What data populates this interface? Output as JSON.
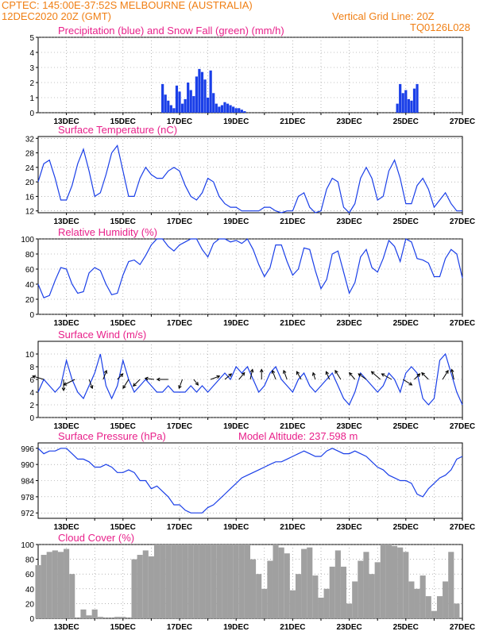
{
  "header": {
    "station": "CPTEC:   145:00E-37:52S   MELBOURNE (AUSTRALIA)",
    "run": "12DEC2020 20Z (GMT)",
    "grid": "Vertical Grid Line: 20Z",
    "code": "TQ0126L028"
  },
  "colors": {
    "header": "#f07f14",
    "title": "#e8208a",
    "line": "#1a3fe8",
    "snow": "#22aa22",
    "cloud": "#a0a0a0",
    "grid": "#888888"
  },
  "x_labels": [
    "13DEC",
    "15DEC",
    "17DEC",
    "19DEC",
    "21DEC",
    "23DEC",
    "25DEC",
    "27DEC"
  ],
  "chart_data": [
    {
      "type": "bar",
      "title": "Precipitation (blue) and Snow Fall (green) (mm/h)",
      "ylim": [
        0,
        5
      ],
      "yticks": [
        0,
        1,
        2,
        3,
        4,
        5
      ],
      "x_start": 12.0,
      "x_end": 27.0,
      "series": [
        {
          "name": "Precipitation",
          "x": [
            16.4,
            16.5,
            16.6,
            16.7,
            16.8,
            16.9,
            17.0,
            17.1,
            17.2,
            17.3,
            17.4,
            17.5,
            17.6,
            17.7,
            17.8,
            17.9,
            18.0,
            18.1,
            18.2,
            18.3,
            18.4,
            18.5,
            18.6,
            18.7,
            18.8,
            18.9,
            19.0,
            19.1,
            19.2,
            19.3,
            24.7,
            24.8,
            24.9,
            25.0,
            25.1,
            25.2,
            25.3,
            25.4
          ],
          "values": [
            1.9,
            1.2,
            0.8,
            0.5,
            0.3,
            1.8,
            1.4,
            0.6,
            0.9,
            2.0,
            1.5,
            1.1,
            2.4,
            2.9,
            2.7,
            2.2,
            1.0,
            2.8,
            1.3,
            0.6,
            0.4,
            0.5,
            0.7,
            0.6,
            0.5,
            0.4,
            0.3,
            0.3,
            0.2,
            0.1,
            0.6,
            1.9,
            1.3,
            1.5,
            0.9,
            0.8,
            1.6,
            1.9
          ]
        },
        {
          "name": "Snow Fall",
          "x": [],
          "values": []
        }
      ]
    },
    {
      "type": "line",
      "title": "Surface Temperature (nC)",
      "ylim": [
        11.5,
        32.5
      ],
      "yticks": [
        12,
        16,
        20,
        24,
        28,
        32
      ],
      "x": [
        12.0,
        12.2,
        12.4,
        12.6,
        12.8,
        13.0,
        13.2,
        13.4,
        13.6,
        13.8,
        14.0,
        14.2,
        14.4,
        14.6,
        14.8,
        15.0,
        15.2,
        15.4,
        15.6,
        15.8,
        16.0,
        16.2,
        16.4,
        16.6,
        16.8,
        17.0,
        17.2,
        17.4,
        17.6,
        17.8,
        18.0,
        18.2,
        18.4,
        18.6,
        18.8,
        19.0,
        19.2,
        19.4,
        19.6,
        19.8,
        20.0,
        20.2,
        20.4,
        20.6,
        20.8,
        21.0,
        21.2,
        21.4,
        21.6,
        21.8,
        22.0,
        22.2,
        22.4,
        22.6,
        22.8,
        23.0,
        23.2,
        23.4,
        23.6,
        23.8,
        24.0,
        24.2,
        24.4,
        24.6,
        24.8,
        25.0,
        25.2,
        25.4,
        25.6,
        25.8,
        26.0,
        26.2,
        26.4,
        26.6,
        26.8,
        27.0
      ],
      "values": [
        20,
        25,
        26,
        21,
        15,
        15,
        19,
        25,
        29,
        23,
        16,
        17,
        22,
        28,
        30,
        23,
        16,
        16,
        21,
        24,
        22,
        21,
        21,
        23,
        24,
        23,
        19,
        16,
        15,
        17,
        21,
        20,
        16,
        14,
        13,
        13,
        12,
        12,
        12,
        12,
        13,
        13,
        12,
        11,
        12,
        12,
        16,
        17,
        13,
        11,
        12,
        18,
        21,
        20,
        13,
        11,
        14,
        21,
        24,
        21,
        15,
        16,
        23,
        26,
        21,
        14,
        14,
        19,
        21,
        18,
        13,
        15,
        17,
        14,
        12,
        12
      ]
    },
    {
      "type": "line",
      "title": "Relative Humidity (%)",
      "ylim": [
        0,
        100
      ],
      "yticks": [
        0,
        20,
        40,
        60,
        80,
        100
      ],
      "x": [
        12.0,
        12.2,
        12.4,
        12.6,
        12.8,
        13.0,
        13.2,
        13.4,
        13.6,
        13.8,
        14.0,
        14.2,
        14.4,
        14.6,
        14.8,
        15.0,
        15.2,
        15.4,
        15.6,
        15.8,
        16.0,
        16.2,
        16.4,
        16.6,
        16.8,
        17.0,
        17.2,
        17.4,
        17.6,
        17.8,
        18.0,
        18.2,
        18.4,
        18.6,
        18.8,
        19.0,
        19.2,
        19.4,
        19.6,
        19.8,
        20.0,
        20.2,
        20.4,
        20.6,
        20.8,
        21.0,
        21.2,
        21.4,
        21.6,
        21.8,
        22.0,
        22.2,
        22.4,
        22.6,
        22.8,
        23.0,
        23.2,
        23.4,
        23.6,
        23.8,
        24.0,
        24.2,
        24.4,
        24.6,
        24.8,
        25.0,
        25.2,
        25.4,
        25.6,
        25.8,
        26.0,
        26.2,
        26.4,
        26.6,
        26.8,
        27.0
      ],
      "values": [
        40,
        22,
        25,
        45,
        62,
        60,
        40,
        28,
        30,
        55,
        62,
        58,
        40,
        26,
        28,
        52,
        70,
        72,
        66,
        78,
        92,
        100,
        100,
        90,
        84,
        92,
        96,
        100,
        100,
        86,
        76,
        94,
        100,
        100,
        96,
        98,
        94,
        100,
        86,
        66,
        50,
        62,
        92,
        92,
        70,
        52,
        60,
        88,
        86,
        58,
        34,
        46,
        80,
        84,
        56,
        28,
        42,
        76,
        86,
        62,
        56,
        74,
        98,
        90,
        70,
        100,
        96,
        74,
        72,
        68,
        50,
        50,
        74,
        86,
        80,
        48
      ]
    },
    {
      "type": "line",
      "title": "Surface Wind (m/s)",
      "ylim": [
        0,
        12
      ],
      "yticks": [
        0,
        2,
        4,
        6,
        8,
        10
      ],
      "x": [
        12.0,
        12.2,
        12.4,
        12.6,
        12.8,
        13.0,
        13.2,
        13.4,
        13.6,
        13.8,
        14.0,
        14.2,
        14.4,
        14.6,
        14.8,
        15.0,
        15.2,
        15.4,
        15.6,
        15.8,
        16.0,
        16.2,
        16.4,
        16.6,
        16.8,
        17.0,
        17.2,
        17.4,
        17.6,
        17.8,
        18.0,
        18.2,
        18.4,
        18.6,
        18.8,
        19.0,
        19.2,
        19.4,
        19.6,
        19.8,
        20.0,
        20.2,
        20.4,
        20.6,
        20.8,
        21.0,
        21.2,
        21.4,
        21.6,
        21.8,
        22.0,
        22.2,
        22.4,
        22.6,
        22.8,
        23.0,
        23.2,
        23.4,
        23.6,
        23.8,
        24.0,
        24.2,
        24.4,
        24.6,
        24.8,
        25.0,
        25.2,
        25.4,
        25.6,
        25.8,
        26.0,
        26.2,
        26.4,
        26.6,
        26.8,
        27.0
      ],
      "values": [
        4,
        6,
        5,
        4,
        5,
        9,
        6,
        4,
        3,
        5,
        7,
        10,
        5,
        3,
        5,
        9,
        6,
        4,
        5,
        6,
        5,
        4,
        4,
        5,
        4,
        4,
        4,
        5,
        4,
        5,
        4,
        5,
        6,
        7,
        6,
        8,
        7,
        8,
        6,
        4,
        5,
        7,
        8,
        6,
        5,
        4,
        6,
        7,
        5,
        4,
        5,
        6,
        7,
        5,
        3,
        2,
        4,
        7,
        6,
        5,
        4,
        5,
        7,
        6,
        4,
        7,
        8,
        7,
        3,
        2,
        3,
        9,
        10,
        7,
        4,
        2
      ],
      "arrows": {
        "x": [
          12.2,
          12.9,
          13.3,
          13.8,
          14.3,
          14.8,
          15.2,
          15.6,
          16.1,
          16.6,
          17.1,
          17.5,
          18.1,
          18.6,
          19.1,
          19.5,
          19.9,
          20.4,
          20.8,
          21.3,
          21.8,
          22.3,
          22.7,
          23.2,
          23.6,
          24.1,
          24.5,
          24.9,
          25.3,
          25.8,
          26.3,
          26.7
        ],
        "u": [
          -1.0,
          0.0,
          -1.0,
          0.3,
          0.3,
          0.5,
          -0.5,
          -0.6,
          -0.8,
          -1.0,
          -0.3,
          0.4,
          0.8,
          0.6,
          0.5,
          0.2,
          0.0,
          -0.3,
          -0.3,
          -0.4,
          -0.2,
          -0.3,
          -0.5,
          -0.5,
          -0.7,
          -0.8,
          -0.9,
          0.8,
          0.5,
          -0.6,
          0.5,
          -0.2
        ],
        "v": [
          0.3,
          -1.0,
          -0.5,
          -0.8,
          0.8,
          0.5,
          -0.8,
          -0.6,
          0.1,
          0.0,
          -0.8,
          -0.5,
          0.3,
          0.5,
          0.6,
          0.9,
          0.9,
          0.8,
          0.8,
          0.7,
          0.6,
          0.7,
          0.8,
          0.6,
          0.5,
          0.7,
          0.5,
          -0.5,
          0.5,
          0.6,
          0.8,
          0.9
        ]
      }
    },
    {
      "type": "line",
      "title": "Surface Pressure (hPa)",
      "subtitle": "Model Altitude: 237.598 m",
      "ylim": [
        970,
        998
      ],
      "yticks": [
        972,
        978,
        984,
        990,
        996
      ],
      "x": [
        12.0,
        12.2,
        12.4,
        12.6,
        12.8,
        13.0,
        13.2,
        13.4,
        13.6,
        13.8,
        14.0,
        14.2,
        14.4,
        14.6,
        14.8,
        15.0,
        15.2,
        15.4,
        15.6,
        15.8,
        16.0,
        16.2,
        16.4,
        16.6,
        16.8,
        17.0,
        17.2,
        17.4,
        17.6,
        17.8,
        18.0,
        18.2,
        18.4,
        18.6,
        18.8,
        19.0,
        19.2,
        19.4,
        19.6,
        19.8,
        20.0,
        20.2,
        20.4,
        20.6,
        20.8,
        21.0,
        21.2,
        21.4,
        21.6,
        21.8,
        22.0,
        22.2,
        22.4,
        22.6,
        22.8,
        23.0,
        23.2,
        23.4,
        23.6,
        23.8,
        24.0,
        24.2,
        24.4,
        24.6,
        24.8,
        25.0,
        25.2,
        25.4,
        25.6,
        25.8,
        26.0,
        26.2,
        26.4,
        26.6,
        26.8,
        27.0
      ],
      "values": [
        996,
        994,
        995,
        995,
        996,
        996,
        994,
        992,
        992,
        991,
        989,
        989,
        990,
        989,
        987,
        987,
        988,
        987,
        984,
        984,
        981,
        982,
        980,
        978,
        975,
        975,
        973,
        972,
        972,
        972,
        974,
        975,
        977,
        979,
        981,
        983,
        985,
        986,
        987,
        988,
        989,
        990,
        991,
        991,
        992,
        993,
        994,
        995,
        994,
        993,
        993,
        995,
        996,
        995,
        994,
        994,
        995,
        994,
        993,
        991,
        989,
        988,
        986,
        985,
        984,
        984,
        983,
        979,
        978,
        981,
        983,
        985,
        986,
        988,
        992,
        993
      ]
    },
    {
      "type": "bar",
      "title": "Cloud Cover (%)",
      "ylim": [
        0,
        100
      ],
      "yticks": [
        0,
        20,
        40,
        60,
        80,
        100
      ],
      "x": [
        12.0,
        12.2,
        12.4,
        12.6,
        12.8,
        13.0,
        13.2,
        13.4,
        13.6,
        13.8,
        14.0,
        14.2,
        14.4,
        14.6,
        14.8,
        15.0,
        15.2,
        15.4,
        15.6,
        15.8,
        16.0,
        16.2,
        16.4,
        16.6,
        16.8,
        17.0,
        17.2,
        17.4,
        17.6,
        17.8,
        18.0,
        18.2,
        18.4,
        18.6,
        18.8,
        19.0,
        19.2,
        19.4,
        19.6,
        19.8,
        20.0,
        20.2,
        20.4,
        20.6,
        20.8,
        21.0,
        21.2,
        21.4,
        21.6,
        21.8,
        22.0,
        22.2,
        22.4,
        22.6,
        22.8,
        23.0,
        23.2,
        23.4,
        23.6,
        23.8,
        24.0,
        24.2,
        24.4,
        24.6,
        24.8,
        25.0,
        25.2,
        25.4,
        25.6,
        25.8,
        26.0,
        26.2,
        26.4,
        26.6,
        26.8,
        27.0
      ],
      "values": [
        72,
        86,
        90,
        92,
        90,
        94,
        60,
        0,
        12,
        4,
        12,
        2,
        0,
        0,
        2,
        2,
        0,
        80,
        86,
        92,
        84,
        100,
        100,
        100,
        100,
        100,
        100,
        100,
        100,
        100,
        100,
        100,
        100,
        100,
        100,
        100,
        100,
        100,
        80,
        60,
        40,
        78,
        100,
        96,
        88,
        38,
        60,
        94,
        96,
        58,
        28,
        40,
        70,
        92,
        70,
        20,
        50,
        78,
        90,
        60,
        76,
        100,
        100,
        98,
        96,
        90,
        50,
        40,
        58,
        30,
        10,
        30,
        50,
        90,
        20,
        0
      ]
    }
  ]
}
